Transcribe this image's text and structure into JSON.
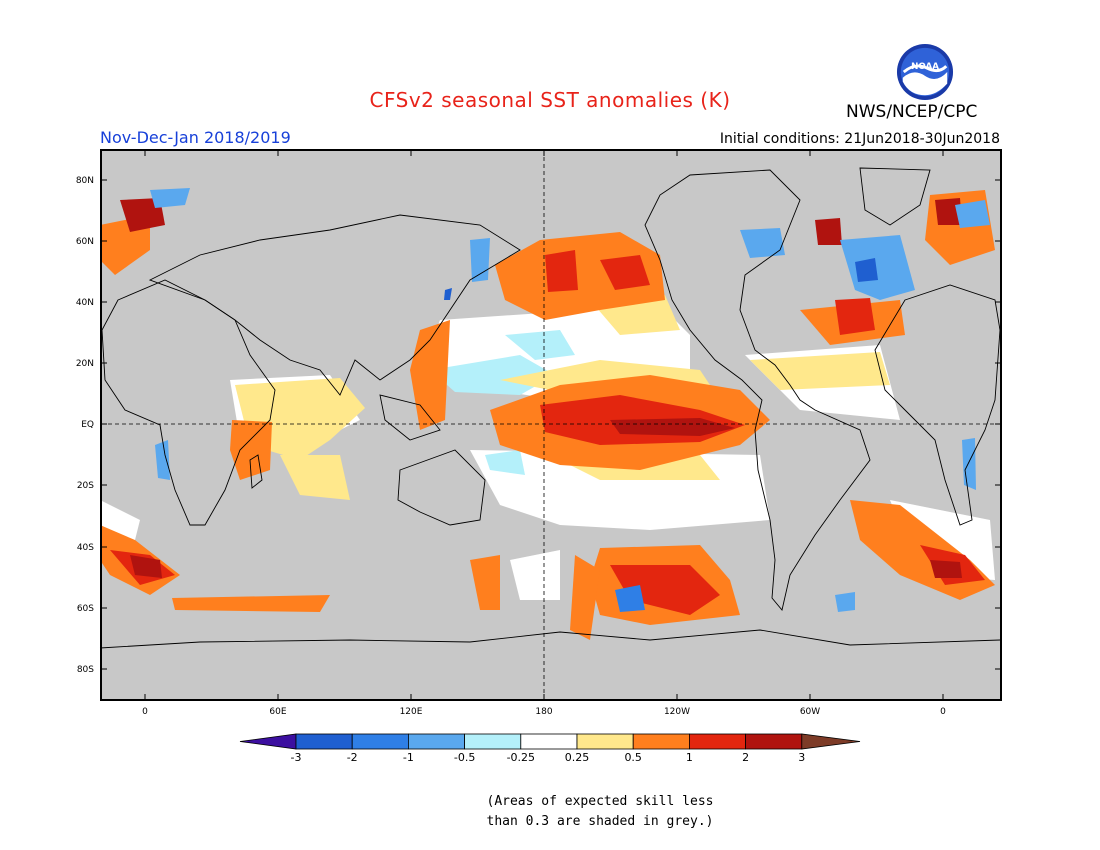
{
  "header": {
    "title": "CFSv2 seasonal SST anomalies (K)",
    "period": "Nov-Dec-Jan 2018/2019",
    "initial_conditions": "Initial conditions: 21Jun2018-30Jun2018",
    "agency": "NWS/NCEP/CPC",
    "logo_text": "NOAA"
  },
  "map": {
    "lat_labels": [
      "80N",
      "60N",
      "40N",
      "20N",
      "EQ",
      "20S",
      "40S",
      "60S",
      "80S"
    ],
    "lon_labels": [
      "0",
      "60E",
      "120E",
      "180",
      "120W",
      "60W",
      "0"
    ],
    "land_color": "#c8c8c8",
    "grey_shading_note": "skill < 0.3"
  },
  "colorbar": {
    "tick_labels": [
      "-3",
      "-2",
      "-1",
      "-0.5",
      "-0.25",
      "0.25",
      "0.5",
      "1",
      "2",
      "3"
    ],
    "colors": [
      "#3c0fa0",
      "#1f5fd0",
      "#2f7fe6",
      "#5aa8ee",
      "#b4f0fa",
      "#ffffff",
      "#ffe88c",
      "#ff7f1e",
      "#e3260f",
      "#b0130f",
      "#7d3b27"
    ]
  },
  "footnote": {
    "line1": "(Areas of expected skill less",
    "line2": "than 0.3 are shaded in grey.)"
  }
}
